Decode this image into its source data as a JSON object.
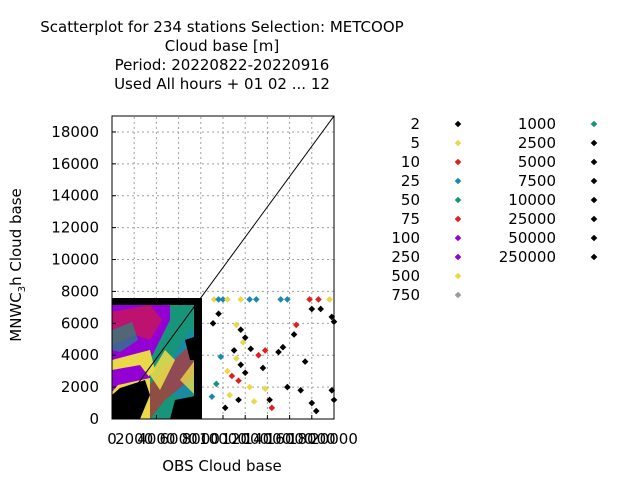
{
  "chart_data": {
    "type": "scatter",
    "title": [
      "Scatterplot for  234 stations Selection: METCOOP",
      "Cloud base [m]",
      "Period: 20220822-20220916",
      "Used  All hours  + 01 02 ... 12"
    ],
    "xlabel": "OBS Cloud base",
    "ylabel": "MNWC",
    "ylabel_sub": "3",
    "ylabel_tail": "h Cloud base",
    "xlim": [
      0,
      20000
    ],
    "ylim": [
      0,
      19000
    ],
    "x_ticks": [
      "0",
      "2000",
      "4000",
      "6000",
      "8000",
      "10000",
      "12000",
      "14000",
      "16000",
      "18000",
      "20000"
    ],
    "y_ticks": [
      "0",
      "2000",
      "4000",
      "6000",
      "8000",
      "10000",
      "12000",
      "14000",
      "16000",
      "18000"
    ],
    "grid": true,
    "legend_placement": "right",
    "legend": [
      {
        "label": "2",
        "color": "#000000"
      },
      {
        "label": "5",
        "color": "#e8d84a"
      },
      {
        "label": "10",
        "color": "#e02020"
      },
      {
        "label": "25",
        "color": "#1a88b0"
      },
      {
        "label": "50",
        "color": "#16957a"
      },
      {
        "label": "75",
        "color": "#e02020"
      },
      {
        "label": "100",
        "color": "#9400d3"
      },
      {
        "label": "250",
        "color": "#9400d3"
      },
      {
        "label": "500",
        "color": "#e8d84a"
      },
      {
        "label": "750",
        "color": "#9a9a9a"
      },
      {
        "label": "1000",
        "color": "#16957a"
      },
      {
        "label": "2500",
        "color": "#000000"
      },
      {
        "label": "5000",
        "color": "#000000"
      },
      {
        "label": "7500",
        "color": "#000000"
      },
      {
        "label": "10000",
        "color": "#000000"
      },
      {
        "label": "25000",
        "color": "#000000"
      },
      {
        "label": "50000",
        "color": "#000000"
      },
      {
        "label": "250000",
        "color": "#000000"
      }
    ],
    "points": [
      {
        "x": 9200,
        "y": 7500,
        "c": "#e8d84a"
      },
      {
        "x": 9600,
        "y": 7500,
        "c": "#1a88b0"
      },
      {
        "x": 10000,
        "y": 7500,
        "c": "#1a88b0"
      },
      {
        "x": 10400,
        "y": 7500,
        "c": "#e8d84a"
      },
      {
        "x": 11600,
        "y": 7500,
        "c": "#e8d84a"
      },
      {
        "x": 12400,
        "y": 7500,
        "c": "#1a88b0"
      },
      {
        "x": 13000,
        "y": 7500,
        "c": "#1a88b0"
      },
      {
        "x": 15200,
        "y": 7500,
        "c": "#1a88b0"
      },
      {
        "x": 15800,
        "y": 7500,
        "c": "#1a88b0"
      },
      {
        "x": 17800,
        "y": 7500,
        "c": "#e02020"
      },
      {
        "x": 18600,
        "y": 7500,
        "c": "#e02020"
      },
      {
        "x": 19600,
        "y": 7500,
        "c": "#e8d84a"
      },
      {
        "x": 18000,
        "y": 6900,
        "c": "#000000"
      },
      {
        "x": 18800,
        "y": 6900,
        "c": "#000000"
      },
      {
        "x": 19800,
        "y": 6400,
        "c": "#000000"
      },
      {
        "x": 20000,
        "y": 6100,
        "c": "#000000"
      },
      {
        "x": 9100,
        "y": 6000,
        "c": "#000000"
      },
      {
        "x": 9600,
        "y": 6600,
        "c": "#000000"
      },
      {
        "x": 11200,
        "y": 5900,
        "c": "#e8d84a"
      },
      {
        "x": 11600,
        "y": 5600,
        "c": "#000000"
      },
      {
        "x": 11800,
        "y": 4800,
        "c": "#e8d84a"
      },
      {
        "x": 12000,
        "y": 5100,
        "c": "#000000"
      },
      {
        "x": 12500,
        "y": 4400,
        "c": "#000000"
      },
      {
        "x": 11000,
        "y": 4300,
        "c": "#000000"
      },
      {
        "x": 11200,
        "y": 3800,
        "c": "#e8d84a"
      },
      {
        "x": 11600,
        "y": 3400,
        "c": "#000000"
      },
      {
        "x": 10400,
        "y": 3000,
        "c": "#e8d84a"
      },
      {
        "x": 10800,
        "y": 2700,
        "c": "#e02020"
      },
      {
        "x": 11400,
        "y": 2400,
        "c": "#e02020"
      },
      {
        "x": 12000,
        "y": 2900,
        "c": "#000000"
      },
      {
        "x": 12400,
        "y": 2000,
        "c": "#e8d84a"
      },
      {
        "x": 13200,
        "y": 4000,
        "c": "#e02020"
      },
      {
        "x": 13800,
        "y": 4300,
        "c": "#e02020"
      },
      {
        "x": 13600,
        "y": 3200,
        "c": "#000000"
      },
      {
        "x": 13800,
        "y": 1900,
        "c": "#e8d84a"
      },
      {
        "x": 14200,
        "y": 1200,
        "c": "#000000"
      },
      {
        "x": 14400,
        "y": 700,
        "c": "#e02020"
      },
      {
        "x": 15400,
        "y": 4500,
        "c": "#000000"
      },
      {
        "x": 15000,
        "y": 4200,
        "c": "#000000"
      },
      {
        "x": 16400,
        "y": 5300,
        "c": "#000000"
      },
      {
        "x": 16600,
        "y": 5900,
        "c": "#e02020"
      },
      {
        "x": 15800,
        "y": 2000,
        "c": "#000000"
      },
      {
        "x": 17400,
        "y": 3600,
        "c": "#000000"
      },
      {
        "x": 17000,
        "y": 1800,
        "c": "#000000"
      },
      {
        "x": 18000,
        "y": 1000,
        "c": "#000000"
      },
      {
        "x": 18400,
        "y": 500,
        "c": "#000000"
      },
      {
        "x": 19800,
        "y": 1800,
        "c": "#000000"
      },
      {
        "x": 20000,
        "y": 1200,
        "c": "#000000"
      },
      {
        "x": 10600,
        "y": 1500,
        "c": "#e8d84a"
      },
      {
        "x": 11400,
        "y": 1200,
        "c": "#000000"
      },
      {
        "x": 10200,
        "y": 700,
        "c": "#000000"
      },
      {
        "x": 12800,
        "y": 1100,
        "c": "#e8d84a"
      },
      {
        "x": 9800,
        "y": 3900,
        "c": "#1a88b0"
      },
      {
        "x": 9400,
        "y": 2200,
        "c": "#16957a"
      },
      {
        "x": 9000,
        "y": 1400,
        "c": "#1a88b0"
      }
    ]
  }
}
